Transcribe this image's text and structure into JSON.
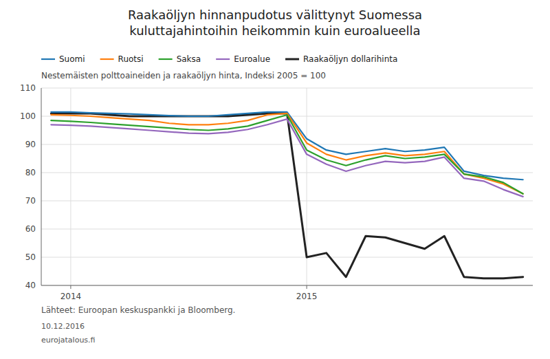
{
  "chart_data": {
    "type": "line",
    "title": "Raakaöljyn hinnanpudotus välittynyt Suomessa\nkuluttajahintoihin heikommin kuin euroalueella",
    "subtitle": "Nestemäisten polttoaineiden ja raakaöljyn hinta, Indeksi 2005 = 100",
    "annotations": [
      "Lähteet: Euroopan keskuspankki ja Bloomberg.",
      "10.12.2016",
      "eurojatalous.fi"
    ],
    "categories": [
      null,
      "2014",
      null,
      null,
      null,
      null,
      null,
      null,
      null,
      null,
      null,
      null,
      null,
      "2015",
      null,
      null,
      null,
      null,
      null,
      null,
      null,
      null,
      null,
      null,
      null
    ],
    "series": [
      {
        "name": "Suomi",
        "color": "#1f77b4",
        "values": [
          101.5,
          101.5,
          101.2,
          101.0,
          100.8,
          100.5,
          100.2,
          100.0,
          100.0,
          100.5,
          101.0,
          101.5,
          101.5,
          92.0,
          88.0,
          86.5,
          87.5,
          88.5,
          87.5,
          88.0,
          89.0,
          80.5,
          79.0,
          78.0,
          77.5
        ]
      },
      {
        "name": "Ruotsi",
        "color": "#ff7f0e",
        "values": [
          100.5,
          100.3,
          100.0,
          99.5,
          99.0,
          98.5,
          97.5,
          97.0,
          97.0,
          97.5,
          98.5,
          100.5,
          101.0,
          90.5,
          86.5,
          84.5,
          86.0,
          87.0,
          86.0,
          86.5,
          87.5,
          79.5,
          78.0,
          76.0,
          72.5
        ]
      },
      {
        "name": "Saksa",
        "color": "#2ca02c",
        "values": [
          98.5,
          98.2,
          97.8,
          97.3,
          96.8,
          96.3,
          95.8,
          95.3,
          95.0,
          95.5,
          96.5,
          98.5,
          100.5,
          88.0,
          84.5,
          82.5,
          84.5,
          86.0,
          85.0,
          85.5,
          86.5,
          79.5,
          78.5,
          76.5,
          72.5
        ]
      },
      {
        "name": "Euroalue",
        "color": "#9467bd",
        "values": [
          97.0,
          96.8,
          96.5,
          96.0,
          95.5,
          95.0,
          94.5,
          94.0,
          93.8,
          94.3,
          95.3,
          97.0,
          99.0,
          86.5,
          83.0,
          80.5,
          82.5,
          84.0,
          83.5,
          84.0,
          85.5,
          78.0,
          77.0,
          74.0,
          71.5
        ]
      },
      {
        "name": "Raakaöljyn dollarihinta",
        "color": "#222222",
        "values": [
          101.0,
          101.0,
          101.0,
          100.5,
          100.0,
          100.0,
          100.0,
          100.0,
          100.0,
          100.0,
          100.5,
          101.0,
          101.0,
          50.0,
          51.5,
          43.0,
          57.5,
          57.0,
          55.0,
          53.0,
          57.5,
          43.0,
          42.5,
          42.5,
          43.0
        ]
      }
    ],
    "ylim": [
      40,
      110
    ],
    "yticks": [
      40,
      50,
      60,
      70,
      80,
      90,
      100,
      110
    ],
    "grid": true,
    "legend": "top"
  }
}
